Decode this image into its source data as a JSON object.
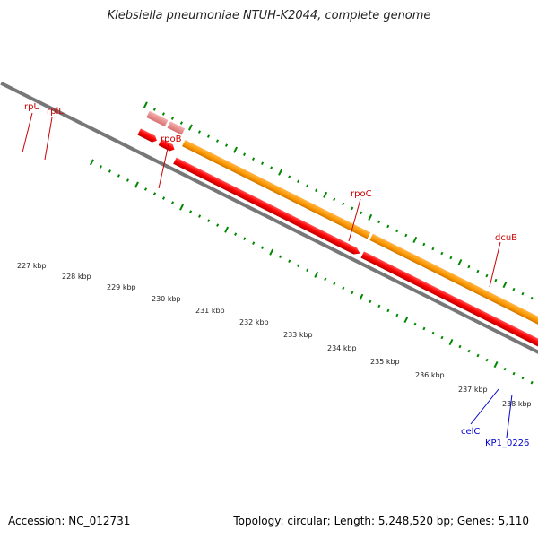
{
  "title": "Klebsiella pneumoniae NTUH-K2044, complete genome",
  "footer": {
    "accession": "Accession: NC_012731",
    "summary": "Topology: circular; Length: 5,248,520 bp; Genes: 5,110"
  },
  "colors": {
    "cds": "#ff0000",
    "rpoB_rpoC_feature": "#ff9900",
    "rpl_feature": "#e88a8a",
    "dcuB_feature": "#c8c8c8",
    "reverse_cds": "#0000ff",
    "reverse_feature": "#33cccc",
    "forward_label": "#cc0000",
    "reverse_label": "#0000cc",
    "tick": "#008800",
    "backbone": "#777777"
  },
  "gene_labels": [
    {
      "name": "rplJ",
      "text": "rpU",
      "strand": "forward"
    },
    {
      "name": "rplL",
      "text": "rplL",
      "strand": "forward"
    },
    {
      "name": "rpoB",
      "text": "rpoB",
      "strand": "forward"
    },
    {
      "name": "rpoC",
      "text": "rpoC",
      "strand": "forward"
    },
    {
      "name": "dcuB",
      "text": "dcuB",
      "strand": "forward"
    },
    {
      "name": "celC",
      "text": "celC",
      "strand": "reverse"
    },
    {
      "name": "KP1_0226",
      "text": "KP1_0226",
      "strand": "reverse"
    }
  ],
  "scale_labels": [
    "227 kbp",
    "228 kbp",
    "229 kbp",
    "230 kbp",
    "231 kbp",
    "232 kbp",
    "233 kbp",
    "234 kbp",
    "235 kbp",
    "236 kbp",
    "237 kbp",
    "238 kbp"
  ]
}
